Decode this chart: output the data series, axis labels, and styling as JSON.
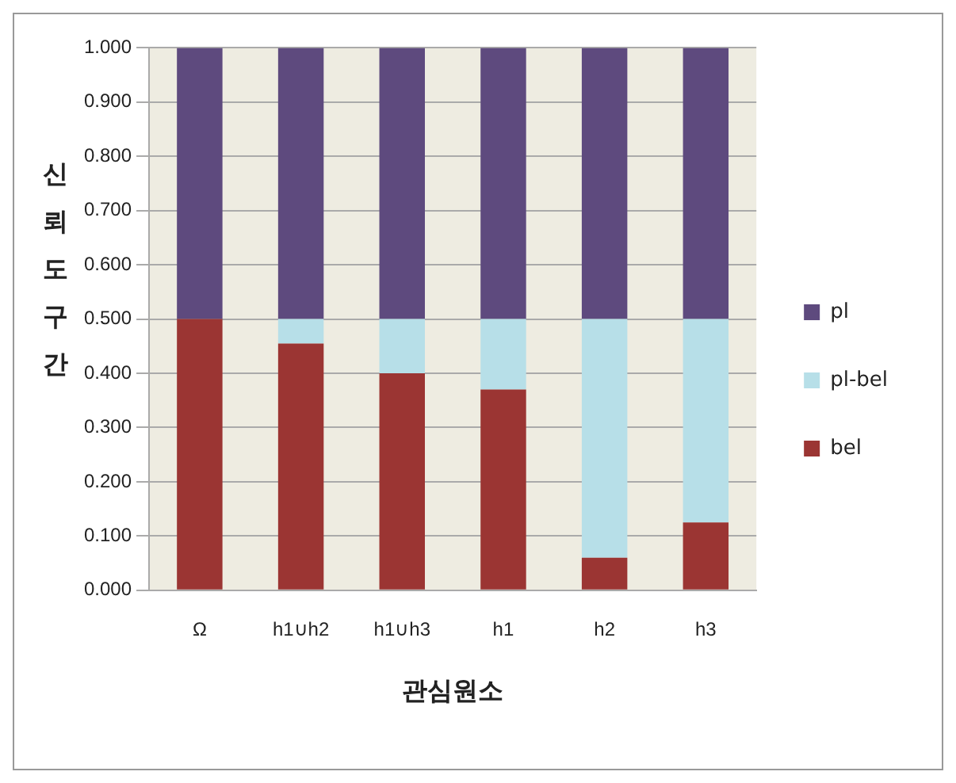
{
  "chart_data": {
    "type": "bar",
    "stacked": true,
    "xlabel": "관심원소",
    "ylabel": "신뢰도구간",
    "categories": [
      "Ω",
      "h1∪h2",
      "h1∪h3",
      "h1",
      "h2",
      "h3"
    ],
    "series": [
      {
        "name": "bel",
        "color": "#9b3533",
        "values": [
          0.5,
          0.455,
          0.4,
          0.37,
          0.06,
          0.125
        ]
      },
      {
        "name": "pl-bel",
        "color": "#b7dfe8",
        "values": [
          0,
          0.045,
          0.1,
          0.13,
          0.44,
          0.375
        ]
      },
      {
        "name": "pl",
        "color": "#5e4a7e",
        "values": [
          0.5,
          0.5,
          0.5,
          0.5,
          0.5,
          0.5
        ]
      }
    ],
    "ylim": [
      0,
      1
    ],
    "yticks": [
      {
        "value": 0,
        "label": "0.000"
      },
      {
        "value": 0.1,
        "label": "0.100"
      },
      {
        "value": 0.2,
        "label": "0.200"
      },
      {
        "value": 0.3,
        "label": "0.300"
      },
      {
        "value": 0.4,
        "label": "0.400"
      },
      {
        "value": 0.5,
        "label": "0.500"
      },
      {
        "value": 0.6,
        "label": "0.600"
      },
      {
        "value": 0.7,
        "label": "0.700"
      },
      {
        "value": 0.8,
        "label": "0.800"
      },
      {
        "value": 0.9,
        "label": "0.900"
      },
      {
        "value": 1,
        "label": "1.000"
      }
    ],
    "grid": "y",
    "legend": "right"
  }
}
